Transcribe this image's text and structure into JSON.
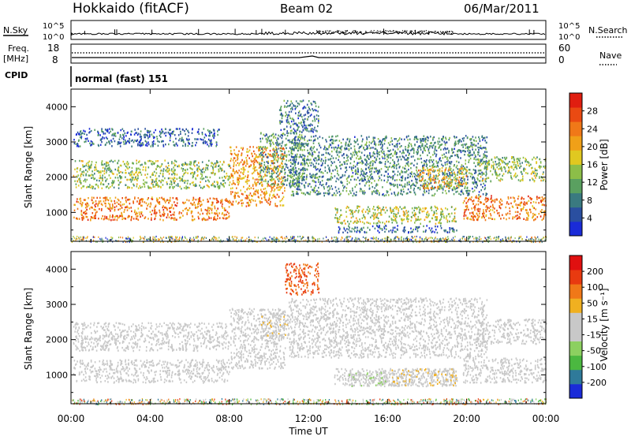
{
  "header": {
    "station": "Hokkaido (fitACF)",
    "beam": "Beam 02",
    "date": "06/Mar/2011"
  },
  "info_panels": {
    "nsky_label": "N.Sky",
    "nsearch_label": "N.Search",
    "noise_ticks": [
      "10^5",
      "10^0"
    ],
    "freq_label_1": "Freq.",
    "freq_label_2": "[MHz]",
    "freq_ticks": [
      "18",
      "8"
    ],
    "nave_label": "Nave",
    "nave_ticks": [
      "60",
      "0"
    ],
    "cpid_label": "CPID",
    "cpid_value": "normal (fast) 151"
  },
  "x_axis": {
    "label": "Time UT",
    "ticks": [
      "00:00",
      "04:00",
      "08:00",
      "12:00",
      "16:00",
      "20:00",
      "00:00"
    ],
    "range_hours": [
      0,
      24
    ]
  },
  "chart_data": [
    {
      "type": "heatmap",
      "panel": "power",
      "ylabel": "Slant Range [km]",
      "ylim": [
        180,
        4500
      ],
      "y_ticks": [
        "1000",
        "2000",
        "3000",
        "4000"
      ],
      "colorbar_label": "Power [dB]",
      "colorbar_ticks": [
        "4",
        "8",
        "12",
        "16",
        "20",
        "24",
        "28"
      ],
      "colorbar_range": [
        0,
        32
      ],
      "colorscale": [
        "#1a2bd8",
        "#2a4fa0",
        "#3a7a80",
        "#5aa060",
        "#8cbe48",
        "#e0c820",
        "#f0a018",
        "#f07818",
        "#ea4a12",
        "#e01e10"
      ],
      "regions": [
        {
          "t": [
            0.1,
            8.0
          ],
          "r": [
            800,
            1450
          ],
          "power": 24
        },
        {
          "t": [
            0.1,
            8.0
          ],
          "r": [
            1700,
            2500
          ],
          "power": 14
        },
        {
          "t": [
            0.1,
            7.5
          ],
          "r": [
            2900,
            3400
          ],
          "power": 6
        },
        {
          "t": [
            8.0,
            10.8
          ],
          "r": [
            1200,
            2900
          ],
          "power": 22
        },
        {
          "t": [
            9.5,
            11.8
          ],
          "r": [
            1800,
            3300
          ],
          "power": 10
        },
        {
          "t": [
            10.5,
            12.5
          ],
          "r": [
            3300,
            4200
          ],
          "power": 8
        },
        {
          "t": [
            13.3,
            19.5
          ],
          "r": [
            700,
            1200
          ],
          "power": 16
        },
        {
          "t": [
            13.5,
            19.5
          ],
          "r": [
            450,
            650
          ],
          "power": 6
        },
        {
          "t": [
            11.0,
            21.0
          ],
          "r": [
            1500,
            3200
          ],
          "power": 9
        },
        {
          "t": [
            17.5,
            20.0
          ],
          "r": [
            1700,
            2300
          ],
          "power": 20
        },
        {
          "t": [
            19.8,
            24.0
          ],
          "r": [
            800,
            1500
          ],
          "power": 24
        },
        {
          "t": [
            20.5,
            24.0
          ],
          "r": [
            1900,
            2600
          ],
          "power": 14
        }
      ]
    },
    {
      "type": "heatmap",
      "panel": "velocity",
      "ylabel": "Slant Range [km]",
      "ylim": [
        180,
        4500
      ],
      "y_ticks": [
        "1000",
        "2000",
        "3000",
        "4000"
      ],
      "colorbar_label": "Velocity [m s⁻¹]",
      "colorbar_ticks": [
        "200",
        "100",
        "50",
        "15",
        "-15",
        "-50",
        "-100",
        "-200"
      ],
      "colorbar_range": [
        -250,
        250
      ],
      "colorscale": [
        "#1a2bd8",
        "#2f7a9a",
        "#4bb840",
        "#8cd060",
        "#c8c8c8",
        "#c8c8c8",
        "#f0b020",
        "#f07818",
        "#e83a10",
        "#e01010"
      ],
      "regions": [
        {
          "t": [
            0.1,
            8.0
          ],
          "r": [
            800,
            1450
          ],
          "velocity": 0
        },
        {
          "t": [
            0.1,
            8.0
          ],
          "r": [
            1700,
            2500
          ],
          "velocity": 0
        },
        {
          "t": [
            8.0,
            10.8
          ],
          "r": [
            1200,
            2900
          ],
          "velocity": 0
        },
        {
          "t": [
            9.5,
            11.0
          ],
          "r": [
            2000,
            2800
          ],
          "velocity": 40
        },
        {
          "t": [
            10.8,
            12.5
          ],
          "r": [
            3300,
            4200
          ],
          "velocity": 150
        },
        {
          "t": [
            13.3,
            19.5
          ],
          "r": [
            700,
            1200
          ],
          "velocity": 0
        },
        {
          "t": [
            14.0,
            16.0
          ],
          "r": [
            700,
            1100
          ],
          "velocity": -40
        },
        {
          "t": [
            16.0,
            19.5
          ],
          "r": [
            700,
            1200
          ],
          "velocity": 40
        },
        {
          "t": [
            11.0,
            21.0
          ],
          "r": [
            1500,
            3200
          ],
          "velocity": 30
        },
        {
          "t": [
            19.8,
            24.0
          ],
          "r": [
            800,
            1500
          ],
          "velocity": 0
        },
        {
          "t": [
            20.5,
            24.0
          ],
          "r": [
            1900,
            2600
          ],
          "velocity": 0
        }
      ]
    }
  ]
}
